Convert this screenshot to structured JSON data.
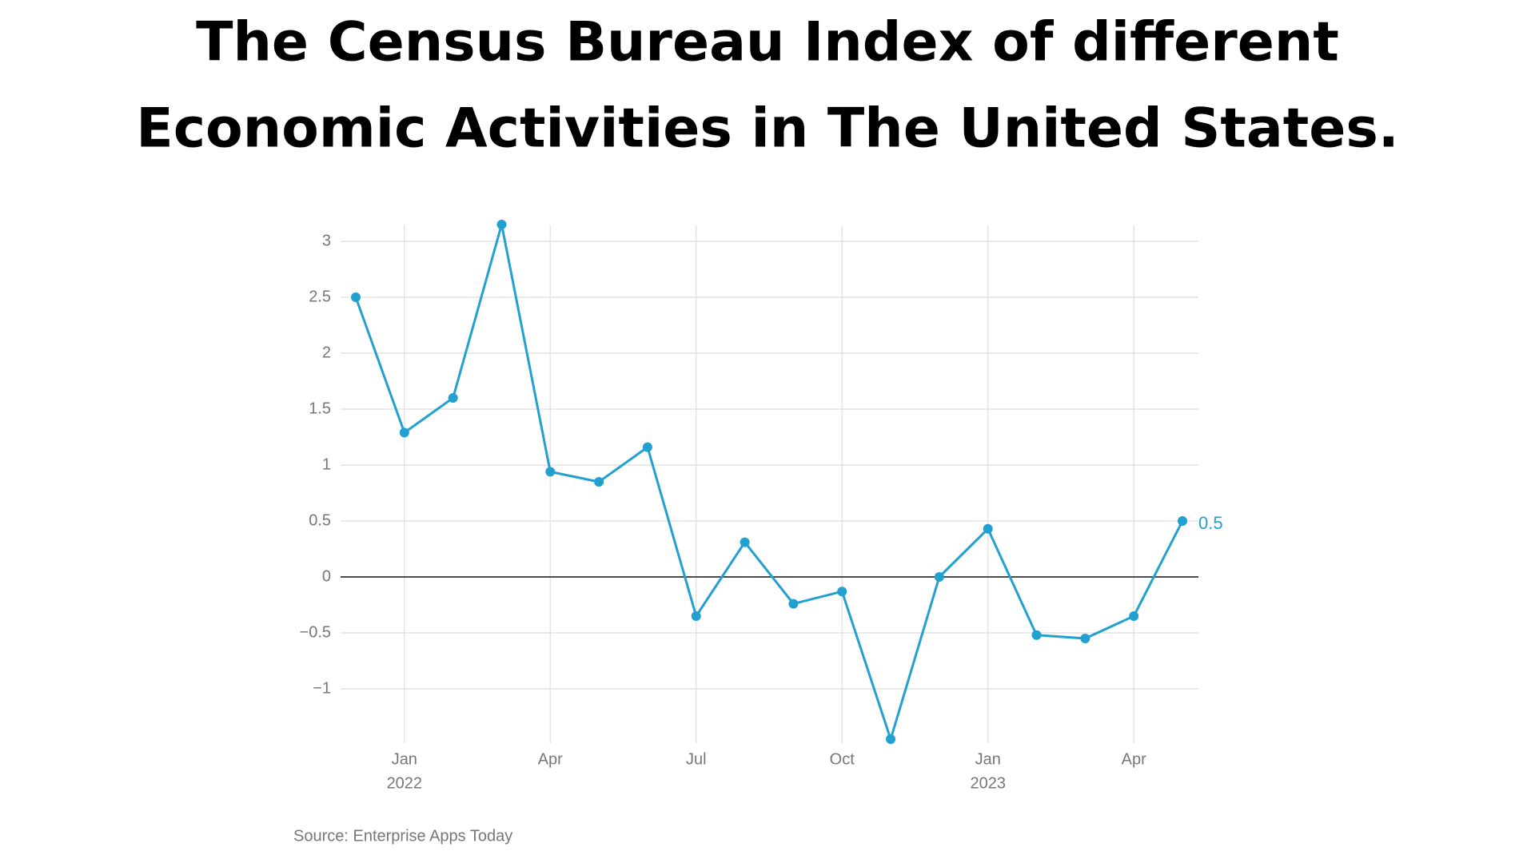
{
  "chart_data": {
    "type": "line",
    "title_lines": [
      "The Census Bureau Index of different",
      "Economic Activities in The United States."
    ],
    "source": "Source: Enterprise Apps Today",
    "x": [
      "2021-12",
      "2022-01",
      "2022-02",
      "2022-03",
      "2022-04",
      "2022-05",
      "2022-06",
      "2022-07",
      "2022-08",
      "2022-09",
      "2022-10",
      "2022-11",
      "2022-12",
      "2023-01",
      "2023-02",
      "2023-03",
      "2023-04",
      "2023-05"
    ],
    "series": [
      {
        "color": "#22a0cf",
        "values": [
          2.5,
          1.29,
          1.6,
          3.15,
          0.94,
          0.85,
          1.16,
          -0.35,
          0.31,
          -0.24,
          -0.13,
          -1.45,
          0.0,
          0.43,
          -0.52,
          -0.55,
          -0.35,
          0.5
        ]
      }
    ],
    "label_last": true,
    "xlim": [
      "2021-12",
      "2023-05"
    ],
    "xticks": [
      {
        "value": "2022-01",
        "label": "Jan",
        "sublabel": "2022"
      },
      {
        "value": "2022-04",
        "label": "Apr"
      },
      {
        "value": "2022-07",
        "label": "Jul"
      },
      {
        "value": "2022-10",
        "label": "Oct"
      },
      {
        "value": "2023-01",
        "label": "Jan",
        "sublabel": "2023"
      },
      {
        "value": "2023-04",
        "label": "Apr"
      }
    ],
    "ylim": [
      -1.5,
      3.2
    ],
    "yticks": [
      {
        "value": -1,
        "label": "−1"
      },
      {
        "value": -0.5,
        "label": "−0.5"
      },
      0,
      0.5,
      1,
      1.5,
      2,
      2.5,
      3
    ],
    "grid": true
  }
}
